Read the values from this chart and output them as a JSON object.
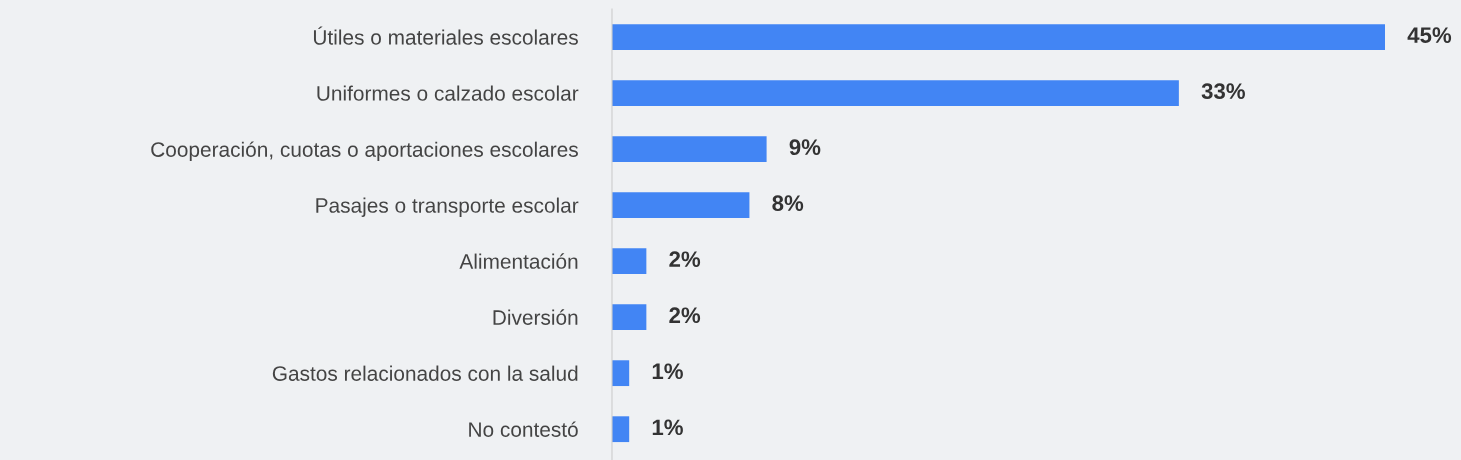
{
  "chart_data": {
    "type": "bar",
    "orientation": "horizontal",
    "relative": false,
    "categories": [
      "Útiles o materiales escolares",
      "Uniformes o calzado escolar",
      "Cooperación, cuotas o aportaciones escolares",
      "Pasajes o transporte escolar",
      "Alimentación",
      "Diversión",
      "Gastos relacionados con la salud",
      "No contestó"
    ],
    "values": [
      45,
      33,
      9,
      8,
      2,
      2,
      1,
      1
    ],
    "value_labels": [
      "45%",
      "33%",
      "9%",
      "8%",
      "2%",
      "2%",
      "1%",
      "1%"
    ],
    "color": "#4285f4",
    "grid": false,
    "legend": false
  }
}
